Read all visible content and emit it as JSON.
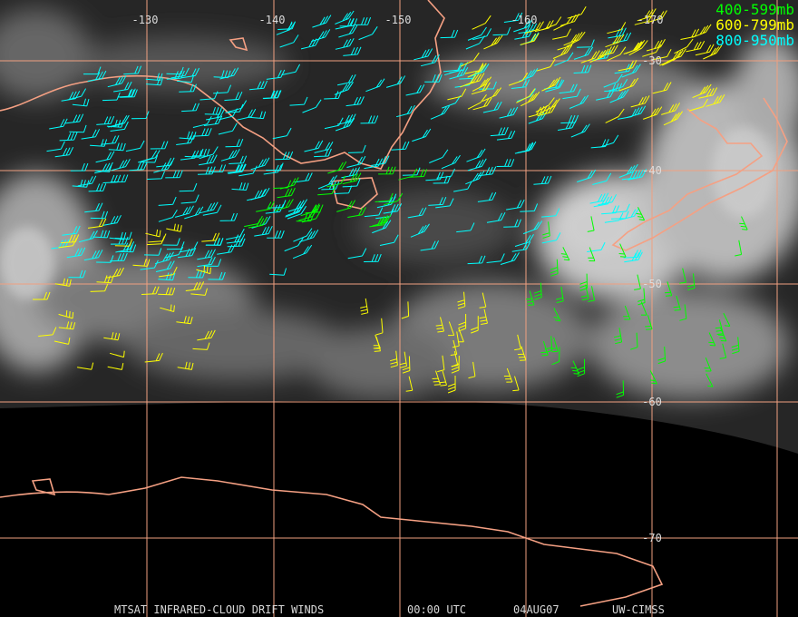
{
  "map": {
    "longitude_labels": [
      "-130",
      "-140",
      "-150",
      "-160",
      "-170"
    ],
    "latitude_labels": [
      "-30",
      "-40",
      "-50",
      "-60",
      "-70"
    ],
    "legend": [
      {
        "label": "400-599mb",
        "color": "#00ff00"
      },
      {
        "label": "600-799mb",
        "color": "#ffff00"
      },
      {
        "label": "800-950mb",
        "color": "#00ffff"
      }
    ],
    "footer": {
      "product": "MTSAT INFRARED-CLOUD DRIFT WINDS",
      "time": "00:00 UTC",
      "date": "04AUG07",
      "source": "UW-CIMSS"
    }
  }
}
